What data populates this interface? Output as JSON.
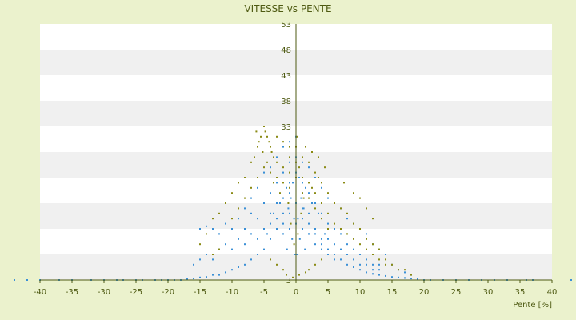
{
  "chart_data": {
    "type": "scatter",
    "title": "VITESSE vs PENTE",
    "xlabel": "Pente [%]",
    "ylabel": "",
    "xlim": [
      -40,
      40
    ],
    "ylim": [
      3,
      53
    ],
    "x_ticks": [
      -40,
      -35,
      -30,
      -25,
      -20,
      -15,
      -10,
      -5,
      0,
      5,
      10,
      15,
      20,
      25,
      30,
      35,
      40
    ],
    "y_ticks": [
      3,
      8,
      13,
      18,
      23,
      28,
      33,
      38,
      43,
      48,
      53
    ],
    "y_tick_labels": [
      "3",
      "",
      "",
      "",
      "",
      "",
      "33",
      "38",
      "43",
      "48",
      "53"
    ],
    "grid": "horizontal alternating bands",
    "legend": "none",
    "colors": {
      "background": "#ebf2cd",
      "plot_band_light": "#ffffff",
      "plot_band_dark": "#f0f0f0",
      "axis": "#4e5a12",
      "text": "#4e5a12",
      "series_blue": "#3a8fd6",
      "series_olive": "#8a8a14"
    },
    "series": [
      {
        "color": "#3a8fd6",
        "points": [
          [
            -44,
            3
          ],
          [
            -42,
            3
          ],
          [
            -40,
            3
          ],
          [
            -37,
            3
          ],
          [
            -35,
            3
          ],
          [
            -32,
            3
          ],
          [
            -30,
            3
          ],
          [
            -28,
            3
          ],
          [
            -27,
            3
          ],
          [
            -25,
            3
          ],
          [
            -24,
            3
          ],
          [
            -22,
            3
          ],
          [
            -21,
            3
          ],
          [
            -20,
            3
          ],
          [
            -19,
            3
          ],
          [
            -18,
            3
          ],
          [
            -17,
            3.2
          ],
          [
            -16,
            3.3
          ],
          [
            -15,
            3.5
          ],
          [
            -14,
            3.6
          ],
          [
            -13,
            4
          ],
          [
            -12,
            4
          ],
          [
            -11,
            4.5
          ],
          [
            -10,
            5
          ],
          [
            -9,
            5.5
          ],
          [
            -8,
            6
          ],
          [
            -7,
            7
          ],
          [
            -6,
            8
          ],
          [
            -5,
            9
          ],
          [
            -4,
            11
          ],
          [
            -3,
            13
          ],
          [
            -2,
            16
          ],
          [
            -1,
            20
          ],
          [
            0,
            24
          ],
          [
            1,
            20
          ],
          [
            2,
            16
          ],
          [
            3,
            13
          ],
          [
            4,
            11
          ],
          [
            5,
            9
          ],
          [
            6,
            8
          ],
          [
            7,
            7
          ],
          [
            8,
            6
          ],
          [
            9,
            5.5
          ],
          [
            10,
            5
          ],
          [
            11,
            4.5
          ],
          [
            12,
            4.2
          ],
          [
            13,
            4
          ],
          [
            14,
            3.8
          ],
          [
            15,
            3.6
          ],
          [
            16,
            3.5
          ],
          [
            17,
            3.4
          ],
          [
            18,
            3.3
          ],
          [
            19,
            3.2
          ],
          [
            20,
            3
          ],
          [
            21,
            3
          ],
          [
            23,
            3
          ],
          [
            25,
            3
          ],
          [
            27,
            3
          ],
          [
            29,
            3
          ],
          [
            31,
            3
          ],
          [
            33,
            3
          ],
          [
            36,
            3
          ],
          [
            37,
            3
          ],
          [
            43,
            3
          ],
          [
            -15,
            13
          ],
          [
            -14,
            13.5
          ],
          [
            -13,
            13
          ],
          [
            -12,
            12
          ],
          [
            -11,
            14
          ],
          [
            -10,
            13
          ],
          [
            -9,
            15
          ],
          [
            -8,
            17
          ],
          [
            -8,
            13
          ],
          [
            -7,
            16
          ],
          [
            -7,
            19
          ],
          [
            -6,
            21
          ],
          [
            -6,
            15
          ],
          [
            -5,
            18
          ],
          [
            -5,
            24
          ],
          [
            -4,
            20
          ],
          [
            -4,
            25
          ],
          [
            -4,
            16
          ],
          [
            -3,
            22
          ],
          [
            -3,
            27
          ],
          [
            -3,
            18
          ],
          [
            -2,
            24
          ],
          [
            -2,
            29
          ],
          [
            -2,
            19
          ],
          [
            -1,
            26
          ],
          [
            -1,
            30
          ],
          [
            -1,
            22
          ],
          [
            0,
            27
          ],
          [
            0,
            31
          ],
          [
            0,
            18
          ],
          [
            1,
            26
          ],
          [
            1,
            22
          ],
          [
            1,
            17
          ],
          [
            2,
            25
          ],
          [
            2,
            20
          ],
          [
            2,
            14
          ],
          [
            3,
            23
          ],
          [
            3,
            18
          ],
          [
            3,
            12
          ],
          [
            4,
            21
          ],
          [
            4,
            16
          ],
          [
            4,
            10
          ],
          [
            5,
            19
          ],
          [
            5,
            14
          ],
          [
            5,
            8
          ],
          [
            6,
            18
          ],
          [
            6,
            13
          ],
          [
            6,
            7
          ],
          [
            7,
            17
          ],
          [
            7,
            12
          ],
          [
            8,
            15
          ],
          [
            8,
            10
          ],
          [
            9,
            14
          ],
          [
            9,
            9
          ],
          [
            10,
            13
          ],
          [
            10,
            8
          ],
          [
            11,
            12
          ],
          [
            11,
            7
          ],
          [
            12,
            10
          ],
          [
            12,
            6
          ],
          [
            13,
            9
          ],
          [
            13,
            6
          ],
          [
            14,
            8
          ],
          [
            15,
            6
          ],
          [
            16,
            5
          ],
          [
            17,
            4.5
          ],
          [
            18,
            4
          ],
          [
            -16,
            6
          ],
          [
            -15,
            7
          ],
          [
            -14,
            8
          ],
          [
            -13,
            7
          ],
          [
            -12,
            9
          ],
          [
            -11,
            10
          ],
          [
            -10,
            9
          ],
          [
            -9,
            11
          ],
          [
            -8,
            10
          ],
          [
            -7,
            12
          ],
          [
            -6,
            11
          ],
          [
            -5,
            13
          ],
          [
            -4,
            14
          ],
          [
            -3,
            15
          ],
          [
            -2,
            14
          ],
          [
            -1,
            16
          ],
          [
            0,
            14
          ],
          [
            1,
            15
          ],
          [
            2,
            12
          ],
          [
            3,
            10
          ],
          [
            4,
            9
          ],
          [
            5,
            11
          ],
          [
            6,
            10
          ],
          [
            7,
            9
          ],
          [
            8,
            8
          ],
          [
            9,
            7
          ],
          [
            10,
            6
          ],
          [
            11,
            6
          ],
          [
            12,
            5
          ],
          [
            13,
            5
          ],
          [
            -0.5,
            22
          ],
          [
            0.5,
            23
          ],
          [
            -1.5,
            21
          ],
          [
            1.5,
            21
          ],
          [
            -0.8,
            19
          ],
          [
            0.8,
            19
          ],
          [
            -1.2,
            17
          ],
          [
            1.2,
            17
          ],
          [
            -2.5,
            18
          ],
          [
            2.5,
            18
          ],
          [
            -0.3,
            15
          ],
          [
            0.3,
            15
          ],
          [
            -1,
            13
          ],
          [
            1,
            13
          ],
          [
            -2,
            12
          ],
          [
            2,
            12
          ],
          [
            -0.6,
            11
          ],
          [
            0.6,
            11
          ],
          [
            -1.4,
            9
          ],
          [
            1.4,
            9
          ],
          [
            -0.2,
            8
          ],
          [
            0.2,
            8
          ],
          [
            -3.5,
            16
          ],
          [
            3.5,
            16
          ],
          [
            -4.5,
            12
          ],
          [
            4.5,
            12
          ]
        ]
      },
      {
        "color": "#8a8a14",
        "points": [
          [
            -5,
            33
          ],
          [
            -4.8,
            32
          ],
          [
            -4.5,
            31
          ],
          [
            -4.2,
            30
          ],
          [
            -4,
            29
          ],
          [
            -3.8,
            28
          ],
          [
            -3.5,
            27
          ],
          [
            -5.5,
            31
          ],
          [
            -6,
            29
          ],
          [
            -6.5,
            27
          ],
          [
            -7,
            26
          ],
          [
            -8,
            23
          ],
          [
            -9,
            22
          ],
          [
            -10,
            20
          ],
          [
            -11,
            18
          ],
          [
            -12,
            16
          ],
          [
            -13,
            15
          ],
          [
            -14,
            12
          ],
          [
            -15,
            10
          ],
          [
            -13,
            8
          ],
          [
            -12,
            9
          ],
          [
            -10,
            15
          ],
          [
            -9,
            17
          ],
          [
            -8,
            19
          ],
          [
            -7,
            21
          ],
          [
            -6,
            23
          ],
          [
            -5,
            25
          ],
          [
            -4,
            24
          ],
          [
            -3,
            26
          ],
          [
            -3,
            23
          ],
          [
            -2,
            25
          ],
          [
            -2,
            22
          ],
          [
            -1,
            24
          ],
          [
            -1,
            21
          ],
          [
            -1,
            27
          ],
          [
            0,
            26
          ],
          [
            0,
            23
          ],
          [
            0,
            29
          ],
          [
            0.5,
            25
          ],
          [
            1,
            27
          ],
          [
            1,
            23
          ],
          [
            1,
            20
          ],
          [
            2,
            26
          ],
          [
            2,
            22
          ],
          [
            2,
            19
          ],
          [
            3,
            24
          ],
          [
            3,
            20
          ],
          [
            3,
            17
          ],
          [
            4,
            22
          ],
          [
            4,
            18
          ],
          [
            4,
            15
          ],
          [
            5,
            20
          ],
          [
            5,
            16
          ],
          [
            5,
            13
          ],
          [
            6,
            18
          ],
          [
            6,
            14
          ],
          [
            7,
            17
          ],
          [
            7,
            13
          ],
          [
            8,
            16
          ],
          [
            8,
            12
          ],
          [
            9,
            14
          ],
          [
            9,
            11
          ],
          [
            10,
            13
          ],
          [
            10,
            10
          ],
          [
            11,
            11
          ],
          [
            11,
            9
          ],
          [
            12,
            10
          ],
          [
            12,
            8
          ],
          [
            13,
            9
          ],
          [
            13,
            7
          ],
          [
            14,
            7
          ],
          [
            14,
            6
          ],
          [
            15,
            6
          ],
          [
            16,
            5
          ],
          [
            17,
            5
          ],
          [
            18,
            4
          ],
          [
            -0.5,
            3.5
          ],
          [
            0.5,
            4
          ],
          [
            -1.5,
            4
          ],
          [
            1.5,
            4.5
          ],
          [
            -2,
            5
          ],
          [
            2,
            5
          ],
          [
            -3,
            6
          ],
          [
            3,
            6
          ],
          [
            -4,
            7
          ],
          [
            4,
            7
          ],
          [
            -0.3,
            10
          ],
          [
            0.3,
            12
          ],
          [
            -0.8,
            14
          ],
          [
            0.8,
            16
          ],
          [
            -1.2,
            18
          ],
          [
            1.2,
            19
          ],
          [
            -2.5,
            20
          ],
          [
            2.5,
            21
          ],
          [
            -3.5,
            22
          ],
          [
            3.5,
            23
          ],
          [
            -4.5,
            26
          ],
          [
            -5.2,
            28
          ],
          [
            -5.8,
            30
          ],
          [
            -6.2,
            32
          ],
          [
            -3,
            31
          ],
          [
            -2,
            30
          ],
          [
            -1,
            29
          ],
          [
            0.2,
            31
          ],
          [
            1.5,
            29
          ],
          [
            2.5,
            28
          ],
          [
            3.5,
            27
          ],
          [
            4.5,
            25
          ],
          [
            7.5,
            22
          ],
          [
            9,
            20
          ],
          [
            10,
            19
          ],
          [
            11,
            17
          ],
          [
            12,
            15
          ]
        ]
      }
    ]
  }
}
